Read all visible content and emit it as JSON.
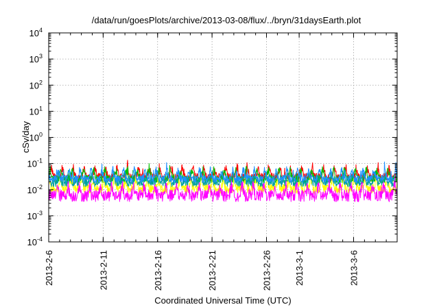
{
  "chart_data": {
    "type": "line",
    "title": "/data/run/goesPlots/archive/2013-03-08/flux/../bryn/31daysEarth.plot",
    "xlabel": "Coordinated Universal Time (UTC)",
    "ylabel": "cSv/day",
    "yscale": "log",
    "ylim": [
      0.0001,
      10000
    ],
    "y_ticks": [
      {
        "base": "10",
        "exp": "-4"
      },
      {
        "base": "10",
        "exp": "-3"
      },
      {
        "base": "10",
        "exp": "-2"
      },
      {
        "base": "10",
        "exp": "-1"
      },
      {
        "base": "10",
        "exp": "0"
      },
      {
        "base": "10",
        "exp": "1"
      },
      {
        "base": "10",
        "exp": "2"
      },
      {
        "base": "10",
        "exp": "3"
      },
      {
        "base": "10",
        "exp": "4"
      }
    ],
    "x_range": [
      "2013-02-06",
      "2013-03-10"
    ],
    "x_ticks": [
      "2013-2-6",
      "2013-2-11",
      "2013-2-16",
      "2013-2-21",
      "2013-2-26",
      "2013-3-1",
      "2013-3-6"
    ],
    "x_tick_dates": [
      "2013-02-06",
      "2013-02-11",
      "2013-02-16",
      "2013-02-21",
      "2013-02-26",
      "2013-03-01",
      "2013-03-06"
    ],
    "grid": true,
    "legend": "none",
    "series": [
      {
        "color": "#ff0000",
        "base": 0.036,
        "spread": 0.3
      },
      {
        "color": "#00c000",
        "base": 0.03,
        "spread": 0.3
      },
      {
        "color": "#ffff00",
        "base": 0.013,
        "spread": 0.35
      },
      {
        "color": "#00a0a0",
        "base": 0.022,
        "spread": 0.3
      },
      {
        "color": "#1e90ff",
        "base": 0.031,
        "spread": 0.28
      },
      {
        "color": "#ff00ff",
        "base": 0.007,
        "spread": 0.45
      }
    ]
  }
}
